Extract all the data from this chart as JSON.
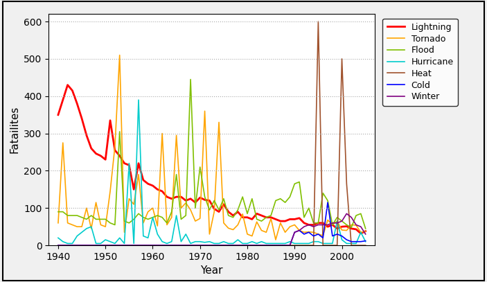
{
  "years": [
    1940,
    1941,
    1942,
    1943,
    1944,
    1945,
    1946,
    1947,
    1948,
    1949,
    1950,
    1951,
    1952,
    1953,
    1954,
    1955,
    1956,
    1957,
    1958,
    1959,
    1960,
    1961,
    1962,
    1963,
    1964,
    1965,
    1966,
    1967,
    1968,
    1969,
    1970,
    1971,
    1972,
    1973,
    1974,
    1975,
    1976,
    1977,
    1978,
    1979,
    1980,
    1981,
    1982,
    1983,
    1984,
    1985,
    1986,
    1987,
    1988,
    1989,
    1990,
    1991,
    1992,
    1993,
    1994,
    1995,
    1996,
    1997,
    1998,
    1999,
    2000,
    2001,
    2002,
    2003,
    2004,
    2005
  ],
  "lightning": [
    350,
    390,
    430,
    415,
    380,
    340,
    295,
    260,
    246,
    240,
    230,
    335,
    255,
    240,
    220,
    215,
    150,
    220,
    175,
    165,
    160,
    150,
    145,
    130,
    125,
    130,
    130,
    120,
    125,
    115,
    128,
    122,
    120,
    98,
    90,
    110,
    90,
    80,
    90,
    75,
    75,
    70,
    85,
    80,
    75,
    75,
    70,
    65,
    65,
    70,
    70,
    73,
    60,
    55,
    55,
    60,
    60,
    50,
    55,
    45,
    50,
    51,
    45,
    43,
    32,
    38
  ],
  "tornado": [
    60,
    275,
    60,
    55,
    50,
    50,
    100,
    45,
    115,
    55,
    50,
    145,
    265,
    510,
    35,
    125,
    110,
    190,
    60,
    90,
    100,
    52,
    300,
    55,
    75,
    295,
    100,
    114,
    95,
    65,
    72,
    360,
    30,
    90,
    330,
    60,
    46,
    42,
    55,
    84,
    30,
    25,
    63,
    40,
    35,
    72,
    15,
    60,
    35,
    50,
    55,
    40,
    35,
    36,
    35,
    30,
    26,
    68,
    55,
    65,
    41,
    40,
    55,
    54,
    35,
    38
  ],
  "flood": [
    90,
    90,
    80,
    80,
    80,
    75,
    70,
    80,
    70,
    70,
    70,
    60,
    55,
    305,
    65,
    60,
    70,
    85,
    75,
    70,
    75,
    80,
    75,
    60,
    90,
    190,
    70,
    80,
    445,
    100,
    210,
    130,
    95,
    120,
    95,
    125,
    80,
    75,
    95,
    130,
    85,
    125,
    70,
    65,
    75,
    80,
    120,
    125,
    115,
    130,
    165,
    170,
    75,
    100,
    60,
    60,
    140,
    120,
    55,
    75,
    65,
    55,
    48,
    80,
    85,
    45
  ],
  "hurricane": [
    20,
    10,
    5,
    5,
    25,
    35,
    45,
    50,
    5,
    5,
    15,
    10,
    5,
    20,
    5,
    220,
    5,
    390,
    25,
    20,
    75,
    30,
    10,
    5,
    10,
    80,
    10,
    30,
    5,
    10,
    10,
    8,
    10,
    5,
    5,
    10,
    5,
    5,
    15,
    5,
    5,
    10,
    5,
    10,
    5,
    5,
    5,
    5,
    5,
    10,
    5,
    5,
    5,
    5,
    10,
    10,
    5,
    5,
    5,
    65,
    15,
    5,
    5,
    5,
    35,
    10
  ],
  "heat": [
    0,
    0,
    0,
    0,
    0,
    0,
    0,
    0,
    0,
    0,
    0,
    0,
    0,
    0,
    0,
    0,
    0,
    0,
    0,
    0,
    0,
    0,
    0,
    0,
    0,
    0,
    0,
    0,
    0,
    0,
    0,
    0,
    0,
    0,
    0,
    0,
    0,
    0,
    0,
    0,
    0,
    0,
    0,
    0,
    0,
    0,
    0,
    0,
    0,
    0,
    0,
    0,
    0,
    0,
    0,
    600,
    0,
    0,
    0,
    0,
    500,
    165,
    0,
    0,
    0,
    0
  ],
  "cold": [
    0,
    0,
    0,
    0,
    0,
    0,
    0,
    0,
    0,
    0,
    0,
    0,
    0,
    0,
    0,
    0,
    0,
    0,
    0,
    0,
    0,
    0,
    0,
    0,
    0,
    0,
    0,
    0,
    0,
    0,
    0,
    0,
    0,
    0,
    0,
    0,
    0,
    0,
    0,
    0,
    0,
    0,
    0,
    0,
    0,
    0,
    0,
    0,
    0,
    0,
    35,
    40,
    30,
    35,
    25,
    30,
    20,
    115,
    25,
    30,
    25,
    15,
    10,
    10,
    10,
    12
  ],
  "winter": [
    0,
    0,
    0,
    0,
    0,
    0,
    0,
    0,
    0,
    0,
    0,
    0,
    0,
    0,
    0,
    0,
    0,
    0,
    0,
    0,
    0,
    0,
    0,
    0,
    0,
    0,
    0,
    0,
    0,
    0,
    0,
    0,
    0,
    0,
    0,
    0,
    0,
    0,
    0,
    0,
    0,
    0,
    0,
    0,
    0,
    0,
    0,
    0,
    0,
    0,
    35,
    40,
    50,
    55,
    50,
    55,
    55,
    55,
    60,
    60,
    65,
    85,
    75,
    55,
    50,
    30
  ],
  "series": [
    {
      "name": "Lightning",
      "color": "#FF0000",
      "lw": 2.0
    },
    {
      "name": "Tornado",
      "color": "#FFA500",
      "lw": 1.2
    },
    {
      "name": "Flood",
      "color": "#80C000",
      "lw": 1.2
    },
    {
      "name": "Hurricane",
      "color": "#00CCCC",
      "lw": 1.2
    },
    {
      "name": "Heat",
      "color": "#A0522D",
      "lw": 1.2
    },
    {
      "name": "Cold",
      "color": "#0000FF",
      "lw": 1.2
    },
    {
      "name": "Winter",
      "color": "#800080",
      "lw": 1.2
    }
  ],
  "xlabel": "Year",
  "ylabel": "Fatailites",
  "ylim": [
    0,
    620
  ],
  "xlim": [
    1938,
    2007
  ],
  "yticks": [
    0,
    100,
    200,
    300,
    400,
    500,
    600
  ],
  "xticks": [
    1940,
    1950,
    1960,
    1970,
    1980,
    1990,
    2000
  ],
  "figsize": [
    7.03,
    4.07
  ],
  "dpi": 100,
  "bg_color": "#f0f0f0",
  "plot_bg_color": "#ffffff"
}
